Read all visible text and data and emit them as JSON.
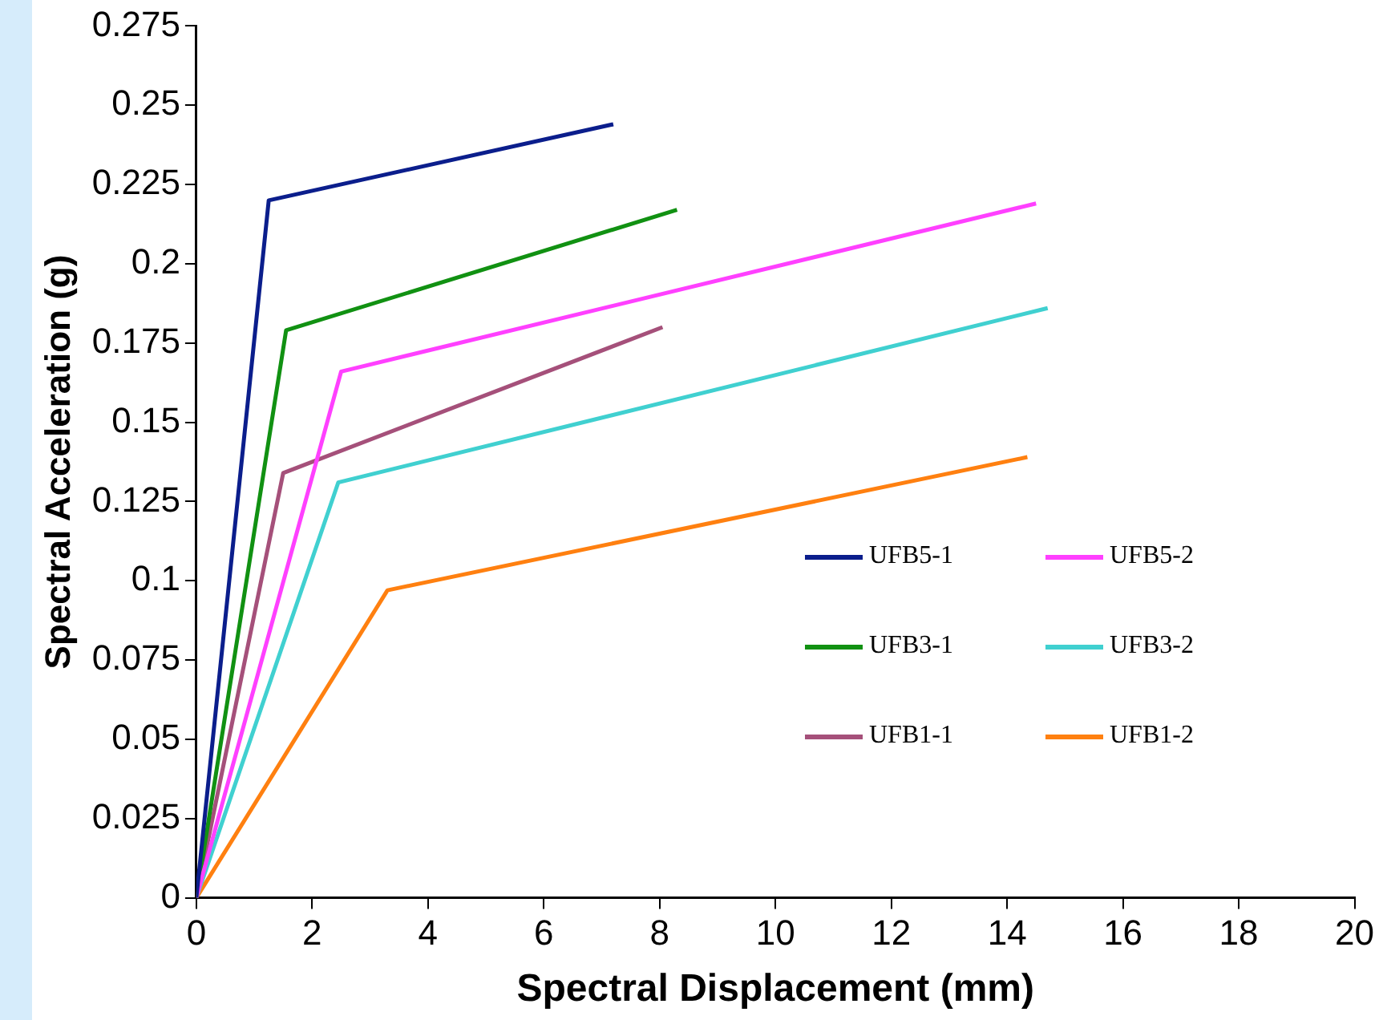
{
  "chart_data": {
    "type": "line",
    "xlabel": "Spectral Displacement (mm)",
    "ylabel": "Spectral Acceleration (g)",
    "xlim": [
      0,
      20
    ],
    "xticks": [
      0,
      2,
      4,
      6,
      8,
      10,
      12,
      14,
      16,
      18,
      20
    ],
    "ylim": [
      0,
      0.275
    ],
    "yticks": [
      0,
      0.025,
      0.05,
      0.075,
      0.1,
      0.125,
      0.15,
      0.175,
      0.2,
      0.225,
      0.25,
      0.275
    ],
    "grid": false,
    "legend": "right",
    "marker": "none",
    "line_style": "solid",
    "series": [
      {
        "name": "UFB5-1",
        "color": "#0b1e8c",
        "x": [
          0,
          1.25,
          7.2
        ],
        "values": [
          0,
          0.22,
          0.244
        ]
      },
      {
        "name": "UFB5-2",
        "color": "#ff40ff",
        "x": [
          0,
          2.5,
          14.5
        ],
        "values": [
          0,
          0.166,
          0.219
        ]
      },
      {
        "name": "UFB3-1",
        "color": "#119112",
        "x": [
          0,
          1.55,
          8.3
        ],
        "values": [
          0,
          0.179,
          0.217
        ]
      },
      {
        "name": "UFB3-2",
        "color": "#40d0d0",
        "x": [
          0,
          2.45,
          14.7
        ],
        "values": [
          0,
          0.131,
          0.186
        ]
      },
      {
        "name": "UFB1-1",
        "color": "#a5507a",
        "x": [
          0,
          1.5,
          8.05
        ],
        "values": [
          0,
          0.134,
          0.18
        ]
      },
      {
        "name": "UFB1-2",
        "color": "#ff8010",
        "x": [
          0,
          3.3,
          14.35
        ],
        "values": [
          0,
          0.097,
          0.139
        ]
      }
    ]
  }
}
